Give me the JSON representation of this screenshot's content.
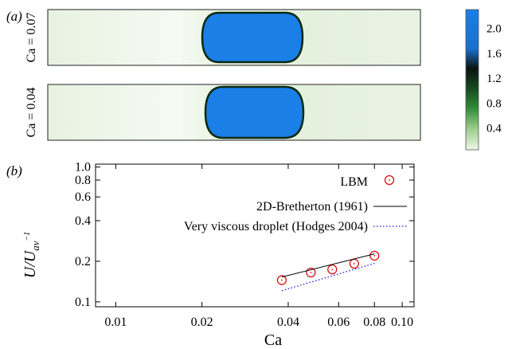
{
  "panel_a": {
    "label": "(a)",
    "rows": [
      {
        "label": "Ca = 0.07"
      },
      {
        "label": "Ca = 0.04"
      }
    ],
    "colorbar": {
      "ticks": [
        "2.0",
        "1.6",
        "1.2",
        "0.8",
        "0.4"
      ],
      "colors": {
        "high": "#1a7fe6",
        "mid": "#0b1a10",
        "low": "#e8f3e2"
      }
    }
  },
  "panel_b": {
    "label": "(b)",
    "ylabel": "U/U_av^-1",
    "xlabel": "Ca"
  },
  "chart_data": {
    "type": "scatter",
    "xscale": "log",
    "yscale": "log",
    "xlim": [
      0.0085,
      0.11
    ],
    "ylim": [
      0.092,
      1.05
    ],
    "xlabel": "Ca",
    "ylabel": "U/U_av^-1",
    "xticks": [
      "0.01",
      "0.02",
      "0.04",
      "0.06",
      "0.08",
      "0.10"
    ],
    "xtick_values": [
      0.01,
      0.02,
      0.04,
      0.06,
      0.08,
      0.1
    ],
    "yticks": [
      "1.0",
      "0.8",
      "0.6",
      "0.4",
      "0.2",
      "0.1"
    ],
    "ytick_values": [
      1.0,
      0.8,
      0.6,
      0.4,
      0.2,
      0.1
    ],
    "legend_position": "top-right",
    "series": [
      {
        "name": "LBM",
        "style": "markers",
        "color": "#e01010",
        "x": [
          0.038,
          0.048,
          0.057,
          0.068,
          0.08
        ],
        "y": [
          0.145,
          0.165,
          0.174,
          0.192,
          0.22
        ]
      },
      {
        "name": "2D-Bretherton (1961)",
        "style": "solid",
        "color": "#000000",
        "x": [
          0.038,
          0.08
        ],
        "y": [
          0.153,
          0.227
        ]
      },
      {
        "name": "Very viscous droplet (Hodges 2004)",
        "style": "dotted",
        "color": "#1a1adf",
        "x": [
          0.038,
          0.08
        ],
        "y": [
          0.121,
          0.193
        ]
      }
    ]
  }
}
